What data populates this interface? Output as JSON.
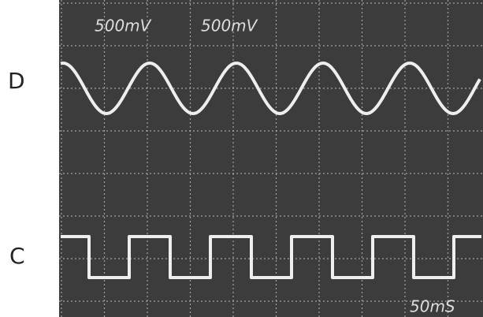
{
  "channel_labels": [
    "D",
    "C"
  ],
  "scale_labels": [
    "500mV",
    "500mV"
  ],
  "timebase": "50mS"
}
